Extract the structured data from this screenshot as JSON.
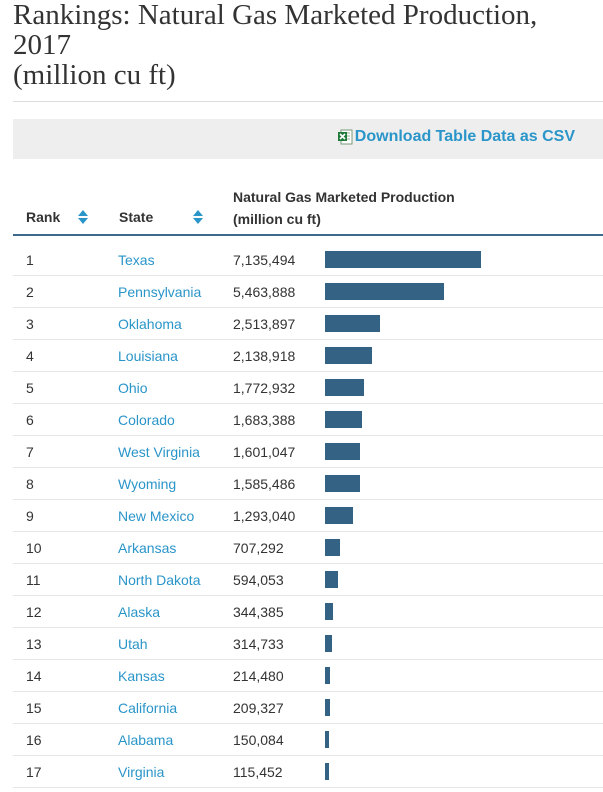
{
  "title": {
    "line1": "Rankings: Natural Gas Marketed Production,",
    "line2": "2017",
    "line3": "(million cu ft)"
  },
  "download": {
    "label": "Download Table Data as CSV",
    "icon": "excel-csv-icon"
  },
  "table": {
    "headers": {
      "rank": "Rank",
      "state": "State",
      "production_line1": "Natural Gas Marketed Production",
      "production_line2": "(million cu ft)"
    },
    "colors": {
      "link": "#2a95c9",
      "bar": "#346285",
      "header_rule": "#3d6a8c",
      "sort_icon": "#2a95c9"
    },
    "rows": [
      {
        "rank": "1",
        "state": "Texas",
        "value": "7,135,494",
        "amount": 7135494
      },
      {
        "rank": "2",
        "state": "Pennsylvania",
        "value": "5,463,888",
        "amount": 5463888
      },
      {
        "rank": "3",
        "state": "Oklahoma",
        "value": "2,513,897",
        "amount": 2513897
      },
      {
        "rank": "4",
        "state": "Louisiana",
        "value": "2,138,918",
        "amount": 2138918
      },
      {
        "rank": "5",
        "state": "Ohio",
        "value": "1,772,932",
        "amount": 1772932
      },
      {
        "rank": "6",
        "state": "Colorado",
        "value": "1,683,388",
        "amount": 1683388
      },
      {
        "rank": "7",
        "state": "West Virginia",
        "value": "1,601,047",
        "amount": 1601047
      },
      {
        "rank": "8",
        "state": "Wyoming",
        "value": "1,585,486",
        "amount": 1585486
      },
      {
        "rank": "9",
        "state": "New Mexico",
        "value": "1,293,040",
        "amount": 1293040
      },
      {
        "rank": "10",
        "state": "Arkansas",
        "value": "707,292",
        "amount": 707292
      },
      {
        "rank": "11",
        "state": "North Dakota",
        "value": "594,053",
        "amount": 594053
      },
      {
        "rank": "12",
        "state": "Alaska",
        "value": "344,385",
        "amount": 344385
      },
      {
        "rank": "13",
        "state": "Utah",
        "value": "314,733",
        "amount": 314733
      },
      {
        "rank": "14",
        "state": "Kansas",
        "value": "214,480",
        "amount": 214480
      },
      {
        "rank": "15",
        "state": "California",
        "value": "209,327",
        "amount": 209327
      },
      {
        "rank": "16",
        "state": "Alabama",
        "value": "150,084",
        "amount": 150084
      },
      {
        "rank": "17",
        "state": "Virginia",
        "value": "115,452",
        "amount": 115452
      }
    ]
  }
}
